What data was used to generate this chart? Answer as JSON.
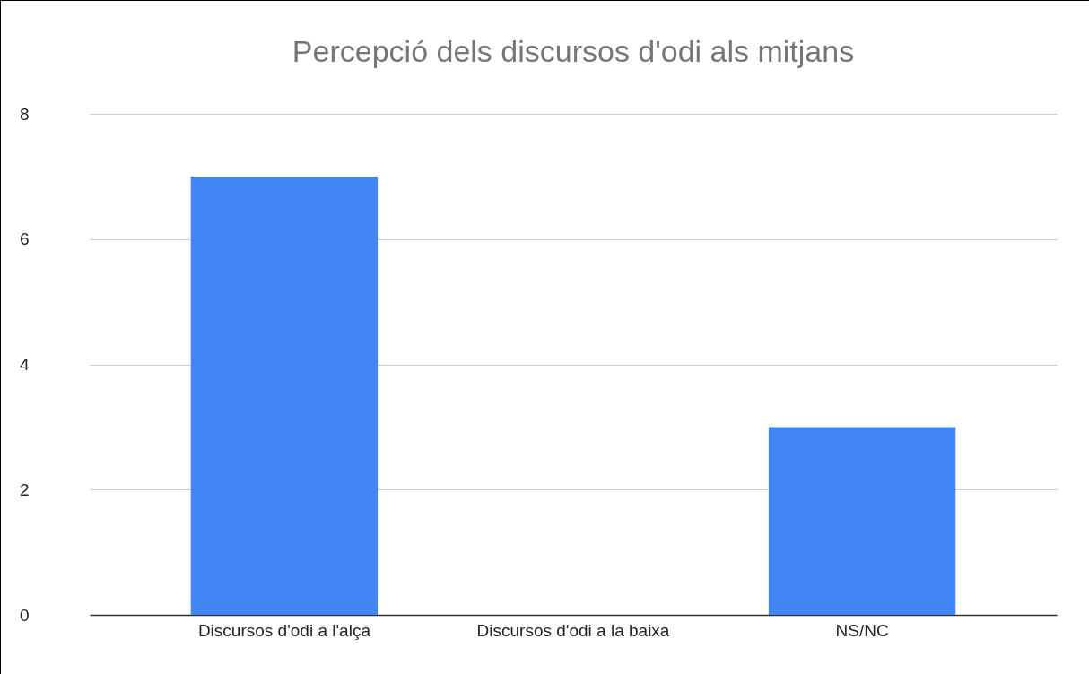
{
  "chart_data": {
    "type": "bar",
    "title": "Percepció dels discursos d'odi als mitjans",
    "categories": [
      "Discursos d'odi a l'alça",
      "Discursos d'odi a la baixa",
      "NS/NC"
    ],
    "values": [
      7,
      0,
      3
    ],
    "color": "#4285f4",
    "ylim": [
      0,
      8
    ],
    "yticks": [
      0,
      2,
      4,
      6,
      8
    ],
    "grid": "y"
  }
}
